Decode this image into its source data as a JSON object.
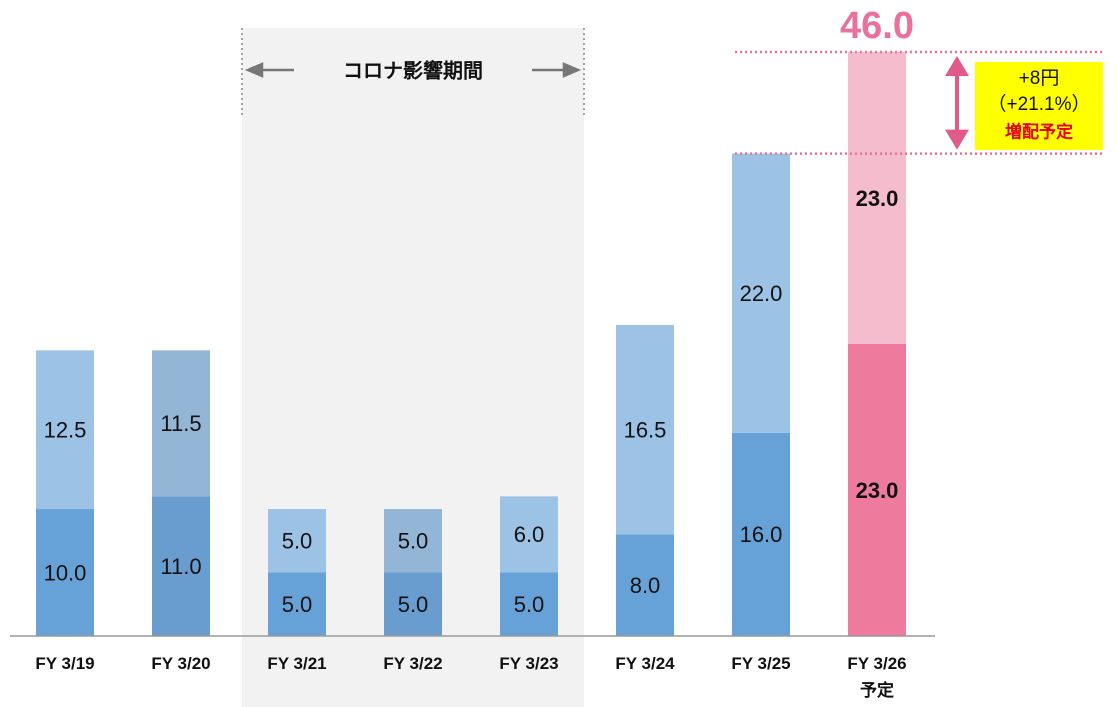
{
  "chart_data": {
    "type": "stacked_bar",
    "categories": [
      "FY 3/19",
      "FY 3/20",
      "FY 3/21",
      "FY 3/22",
      "FY 3/23",
      "FY 3/24",
      "FY 3/25",
      "FY 3/26\n予定"
    ],
    "series": [
      {
        "colors": [
          "#66a2d8",
          "#6a9dcf",
          "#66a2d8",
          "#6a9dcf",
          "#66a2d8",
          "#66a2d8",
          "#66a2d8",
          "#ee7b9e"
        ],
        "values": [
          10,
          11,
          5,
          5,
          5,
          8,
          16,
          23
        ],
        "value_labels": [
          "10.0",
          "11.0",
          "5.0",
          "5.0",
          "5.0",
          "8.0",
          "16.0",
          "23.0"
        ]
      },
      {
        "colors": [
          "#9cc2e6",
          "#94b6d6",
          "#9cc2e6",
          "#94b6d6",
          "#9cc2e6",
          "#9cc2e6",
          "#9cc2e6",
          "#f5bccd"
        ],
        "values": [
          12.5,
          11.5,
          5,
          5,
          6,
          16.5,
          22,
          23
        ],
        "value_labels": [
          "12.5",
          "11.5",
          "5.0",
          "5.0",
          "6.0",
          "16.5",
          "22.0",
          "23.0"
        ]
      }
    ],
    "ylim": [
      0,
      46
    ],
    "total": {
      "value": 46,
      "label": "46.0"
    },
    "highlight": {
      "label": "コロナ影響期間",
      "start": 2,
      "end": 4
    },
    "callout": {
      "lines": [
        "+8円",
        "（+21.1%）",
        "増配予定"
      ]
    }
  }
}
